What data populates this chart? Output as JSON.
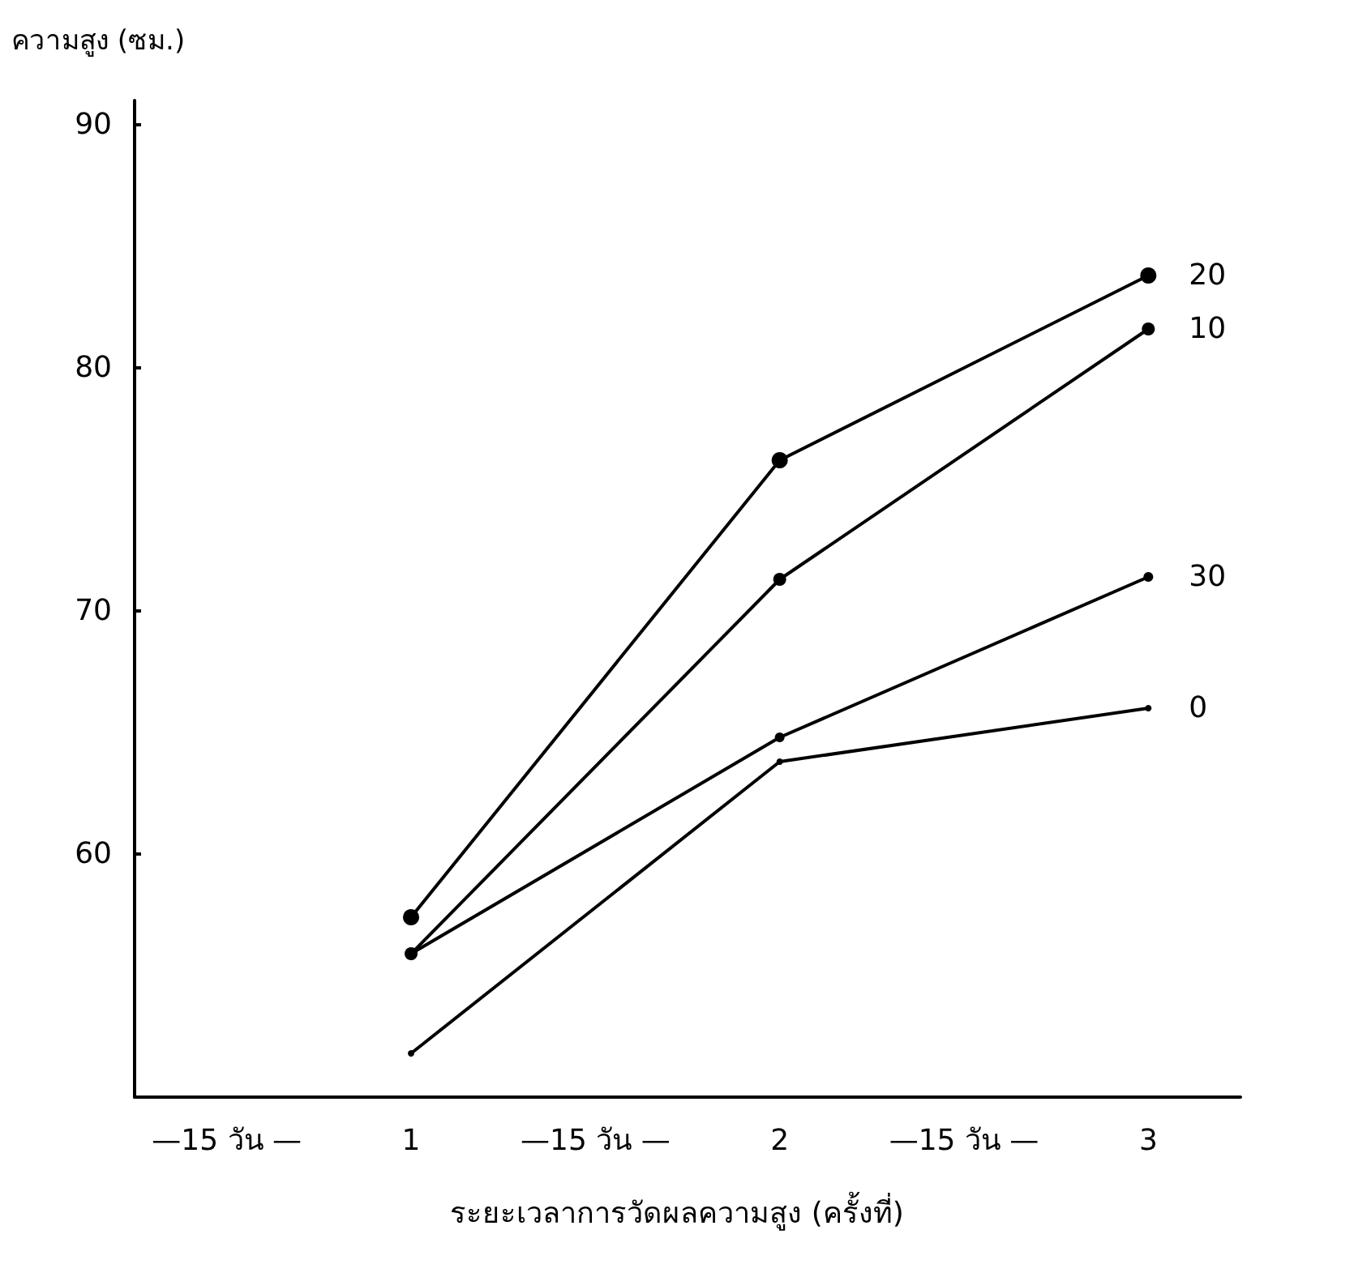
{
  "chart_data": {
    "type": "line",
    "xlabel": "ระยะเวลาการวัดผลความสูง (ครั้งที่)",
    "ylabel": "ความสูง (ซม.)",
    "categories": [
      "—15 วัน —",
      "1",
      "—15 วัน —",
      "2",
      "—15 วัน —",
      "3"
    ],
    "series": [
      {
        "name": "20",
        "color": "#000000",
        "values": [
          null,
          57.4,
          null,
          76.2,
          null,
          83.8
        ]
      },
      {
        "name": "10",
        "color": "#000000",
        "values": [
          null,
          55.9,
          null,
          71.3,
          null,
          81.6
        ]
      },
      {
        "name": "30",
        "color": "#000000",
        "values": [
          null,
          55.9,
          null,
          64.8,
          null,
          71.4
        ]
      },
      {
        "name": "0",
        "color": "#000000",
        "values": [
          null,
          51.8,
          null,
          63.8,
          null,
          66.0
        ]
      }
    ],
    "ylim": [
      50,
      91
    ],
    "yticks": [
      60,
      70,
      80,
      90
    ],
    "grid": false,
    "legend": false,
    "marker": "circle",
    "line_style": "solid"
  }
}
